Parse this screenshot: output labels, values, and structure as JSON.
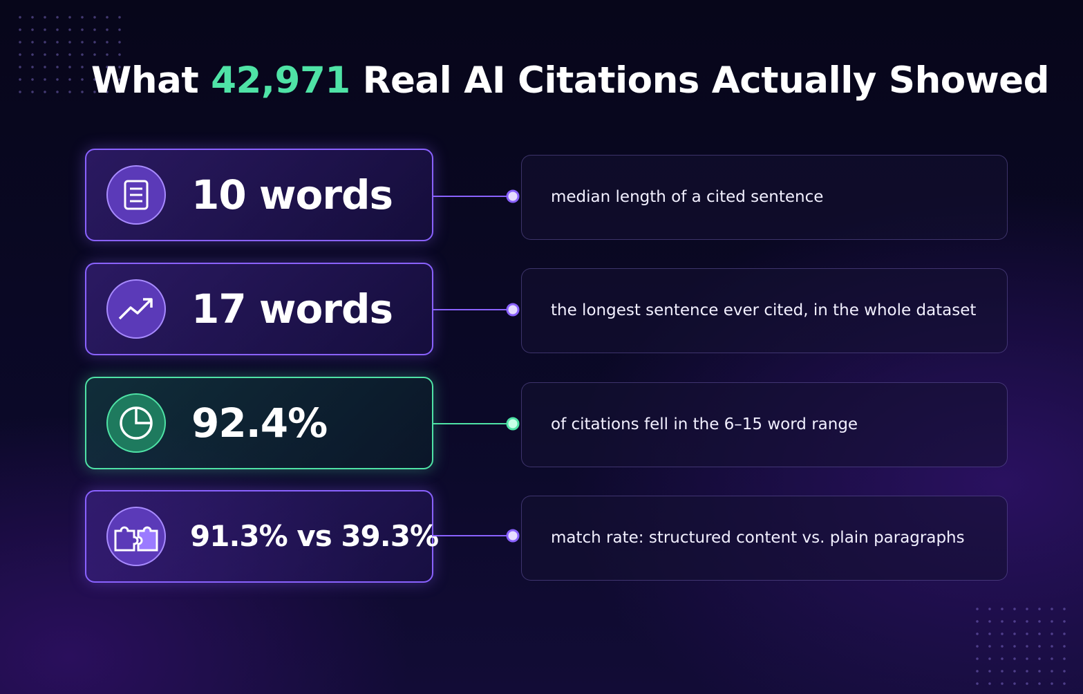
{
  "header": {
    "title_before": "What",
    "title_highlight": "42,971",
    "title_after": "Real AI Citations Actually Showed"
  },
  "stats": [
    {
      "value": "10 words",
      "description": "median length of a cited sentence"
    },
    {
      "value": "17 words",
      "description": "the longest sentence ever cited, in the whole dataset"
    },
    {
      "value": "92.4%",
      "description": "of citations fell in the 6–15 word range"
    },
    {
      "value": "91.3% vs 39.3%",
      "description": "match rate: structured content vs. plain paragraphs"
    }
  ]
}
